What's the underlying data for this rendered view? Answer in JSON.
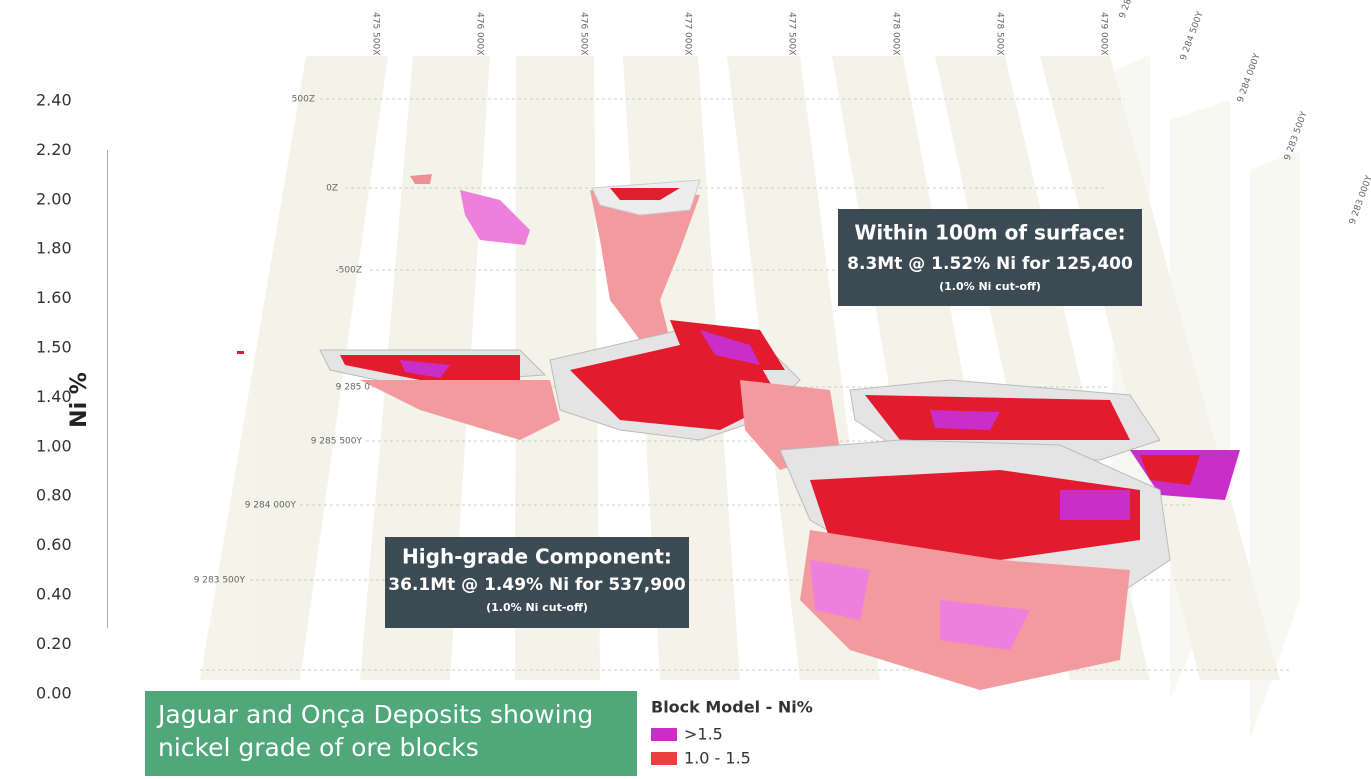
{
  "color_scale": {
    "label": "Ni %",
    "ticks": [
      "2.40",
      "2.20",
      "2.00",
      "1.80",
      "1.60",
      "1.50",
      "1.40",
      "1.00",
      "0.80",
      "0.60",
      "0.40",
      "0.20",
      "0.00"
    ]
  },
  "x_axis_labels": [
    "475 500X",
    "476 000X",
    "476 500X",
    "477 000X",
    "477 500X",
    "478 000X",
    "478 500X",
    "479 000X"
  ],
  "y_axis_labels_right": [
    "9 285 000Y",
    "9 284 500Y",
    "9 284 000Y",
    "9 283 500Y",
    "9 283 000Y"
  ],
  "left_labels": [
    "500Z",
    "0Z",
    "-500Z",
    "9 285 0",
    "9 285 500Y",
    "9 284 000Y",
    "9 283 500Y"
  ],
  "callouts": [
    {
      "title": "Within 100m of surface:",
      "detail": "8.3Mt @ 1.52% Ni for 125,400",
      "note": "(1.0% Ni cut-off)"
    },
    {
      "title": "High-grade Component:",
      "detail": "36.1Mt @ 1.49% Ni for 537,900",
      "note": "(1.0% Ni cut-off)"
    }
  ],
  "caption": [
    "Jaguar and Onça Deposits showing",
    "nickel grade of ore blocks"
  ],
  "legend": {
    "title": "Block Model - Ni%",
    "items": [
      {
        "label": ">1.5",
        "color": "#c92ec9"
      },
      {
        "label": "1.0 - 1.5",
        "color": "#e9413f"
      }
    ]
  }
}
